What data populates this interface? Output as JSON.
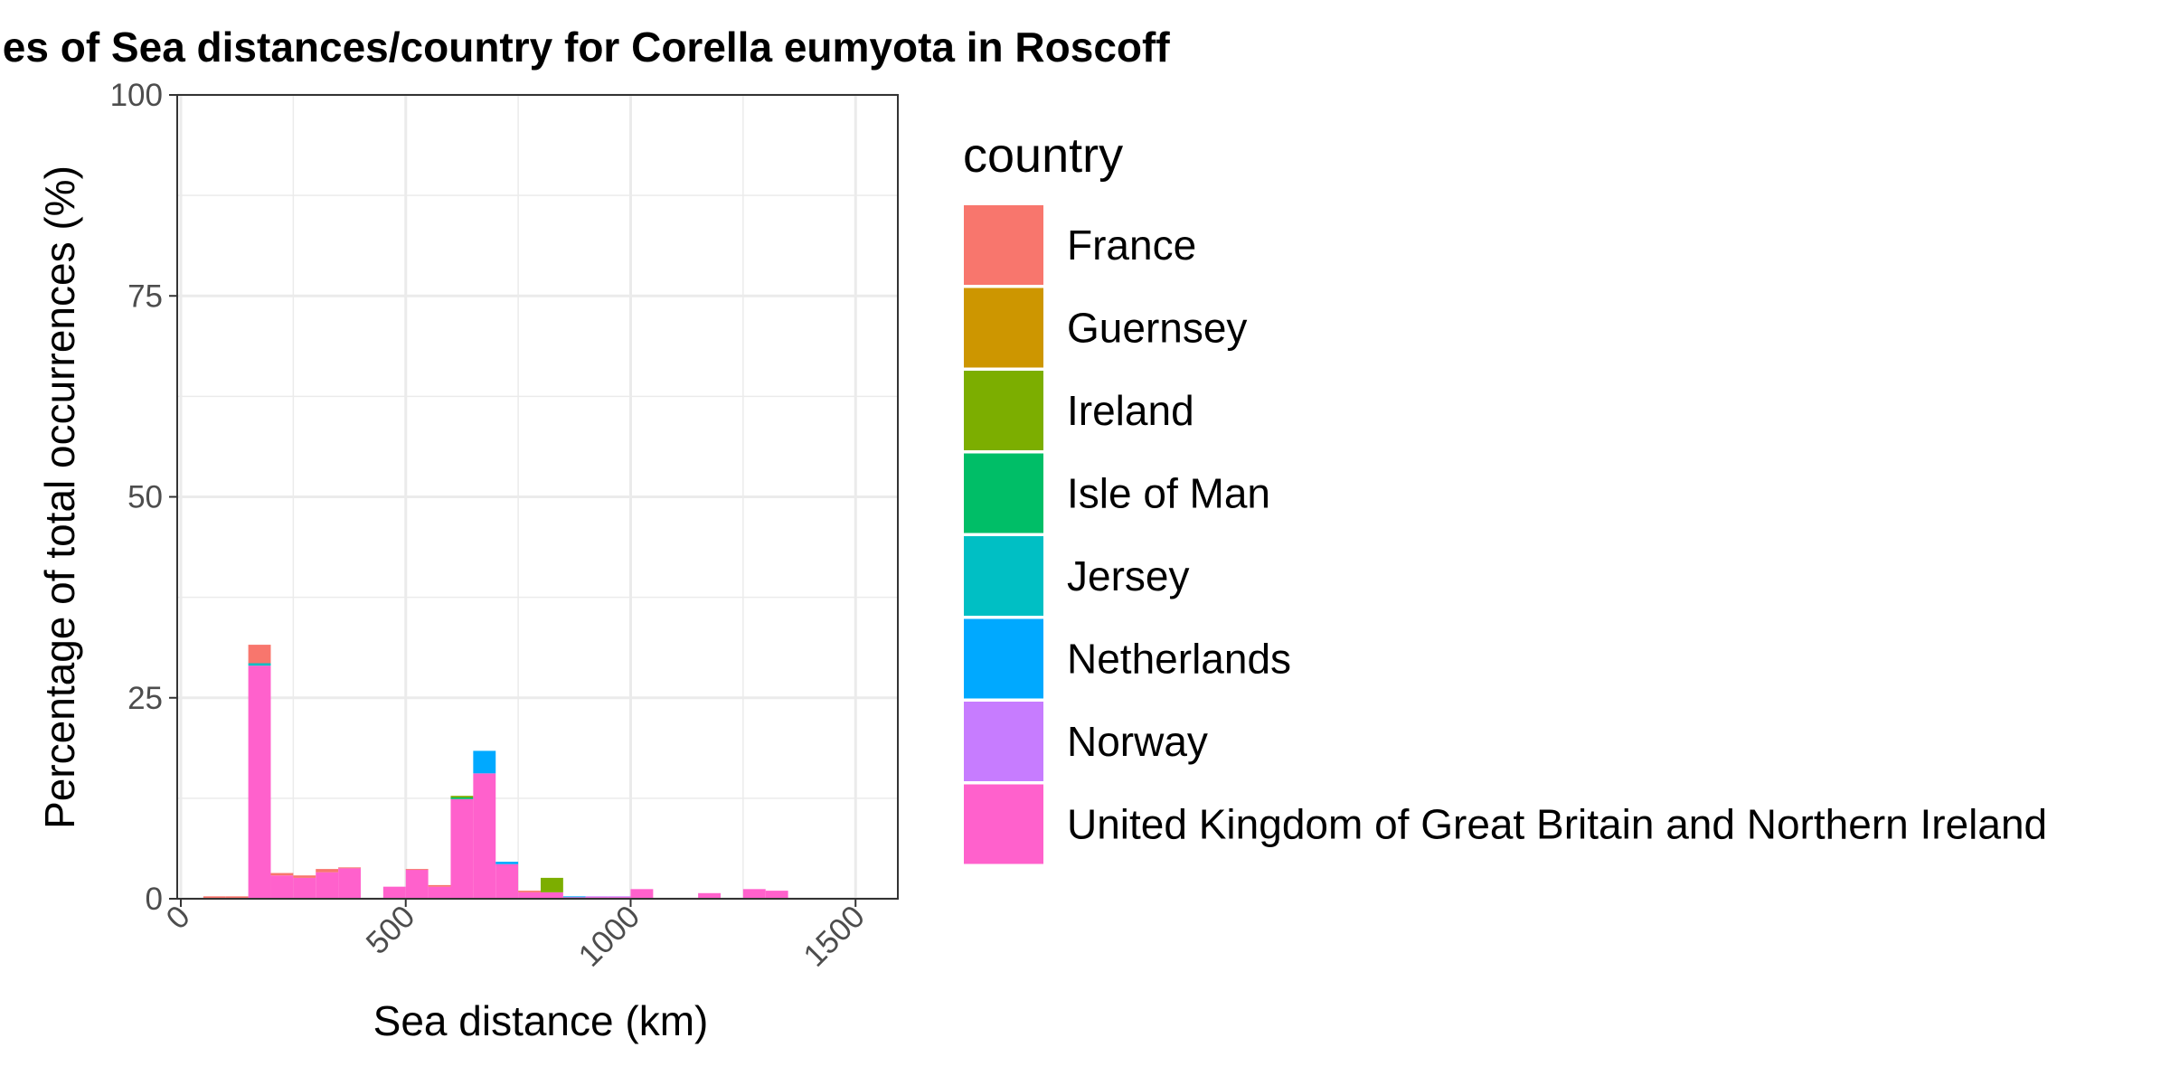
{
  "chart_data": {
    "type": "bar",
    "stacked": true,
    "title": "ies of Sea distances/country for Corella eumyota in Roscoff",
    "xlabel": "Sea distance (km)",
    "ylabel": "Percentage of total occurrences (%)",
    "xlim": [
      0,
      1600
    ],
    "ylim": [
      0,
      100
    ],
    "x_ticks": [
      "0",
      "500",
      "1000",
      "1500"
    ],
    "y_ticks": [
      "0",
      "25",
      "50",
      "75",
      "100"
    ],
    "grid": true,
    "bin_width": 50,
    "legend": {
      "title": "country",
      "position": "right",
      "entries": [
        {
          "name": "France",
          "color": "#F8766D"
        },
        {
          "name": "Guernsey",
          "color": "#CD9600"
        },
        {
          "name": "Ireland",
          "color": "#7CAE00"
        },
        {
          "name": "Isle of Man",
          "color": "#00BE67"
        },
        {
          "name": "Jersey",
          "color": "#00BFC4"
        },
        {
          "name": "Netherlands",
          "color": "#00A9FF"
        },
        {
          "name": "Norway",
          "color": "#C77CFF"
        },
        {
          "name": "United Kingdom of Great Britain and Northern Ireland",
          "color": "#FF61CC"
        }
      ]
    },
    "bins": [
      {
        "x0": 50,
        "x1": 100,
        "values": {
          "France": 0.2,
          "United Kingdom of Great Britain and Northern Ireland": 0.1
        }
      },
      {
        "x0": 100,
        "x1": 150,
        "values": {
          "France": 0.2,
          "United Kingdom of Great Britain and Northern Ireland": 0.1
        }
      },
      {
        "x0": 150,
        "x1": 200,
        "values": {
          "United Kingdom of Great Britain and Northern Ireland": 29.0,
          "Jersey": 0.3,
          "France": 2.3
        }
      },
      {
        "x0": 200,
        "x1": 250,
        "values": {
          "United Kingdom of Great Britain and Northern Ireland": 2.9,
          "France": 0.3
        }
      },
      {
        "x0": 250,
        "x1": 300,
        "values": {
          "United Kingdom of Great Britain and Northern Ireland": 2.6,
          "France": 0.3
        }
      },
      {
        "x0": 300,
        "x1": 350,
        "values": {
          "United Kingdom of Great Britain and Northern Ireland": 3.3,
          "France": 0.4
        }
      },
      {
        "x0": 350,
        "x1": 400,
        "values": {
          "United Kingdom of Great Britain and Northern Ireland": 3.8,
          "France": 0.1
        }
      },
      {
        "x0": 450,
        "x1": 500,
        "values": {
          "United Kingdom of Great Britain and Northern Ireland": 1.5
        }
      },
      {
        "x0": 500,
        "x1": 550,
        "values": {
          "United Kingdom of Great Britain and Northern Ireland": 3.6,
          "France": 0.1
        }
      },
      {
        "x0": 550,
        "x1": 600,
        "values": {
          "United Kingdom of Great Britain and Northern Ireland": 1.5,
          "France": 0.2
        }
      },
      {
        "x0": 600,
        "x1": 650,
        "values": {
          "United Kingdom of Great Britain and Northern Ireland": 12.4,
          "Isle of Man": 0.2,
          "Ireland": 0.2
        }
      },
      {
        "x0": 650,
        "x1": 700,
        "values": {
          "United Kingdom of Great Britain and Northern Ireland": 15.6,
          "Netherlands": 2.8
        }
      },
      {
        "x0": 700,
        "x1": 750,
        "values": {
          "United Kingdom of Great Britain and Northern Ireland": 4.3,
          "Netherlands": 0.3
        }
      },
      {
        "x0": 750,
        "x1": 800,
        "values": {
          "United Kingdom of Great Britain and Northern Ireland": 0.8,
          "France": 0.2
        }
      },
      {
        "x0": 800,
        "x1": 850,
        "values": {
          "United Kingdom of Great Britain and Northern Ireland": 0.8,
          "Ireland": 1.8
        }
      },
      {
        "x0": 850,
        "x1": 900,
        "values": {
          "United Kingdom of Great Britain and Northern Ireland": 0.2,
          "Netherlands": 0.1
        }
      },
      {
        "x0": 900,
        "x1": 950,
        "values": {
          "United Kingdom of Great Britain and Northern Ireland": 0.2,
          "Norway": 0.1
        }
      },
      {
        "x0": 950,
        "x1": 1000,
        "values": {
          "United Kingdom of Great Britain and Northern Ireland": 0.2,
          "Norway": 0.1
        }
      },
      {
        "x0": 1000,
        "x1": 1050,
        "values": {
          "United Kingdom of Great Britain and Northern Ireland": 1.2
        }
      },
      {
        "x0": 1050,
        "x1": 1100,
        "values": {
          "United Kingdom of Great Britain and Northern Ireland": 0.1
        }
      },
      {
        "x0": 1100,
        "x1": 1150,
        "values": {
          "United Kingdom of Great Britain and Northern Ireland": 0.1
        }
      },
      {
        "x0": 1150,
        "x1": 1200,
        "values": {
          "United Kingdom of Great Britain and Northern Ireland": 0.7
        }
      },
      {
        "x0": 1200,
        "x1": 1250,
        "values": {
          "United Kingdom of Great Britain and Northern Ireland": 0.1
        }
      },
      {
        "x0": 1250,
        "x1": 1300,
        "values": {
          "United Kingdom of Great Britain and Northern Ireland": 1.2
        }
      },
      {
        "x0": 1300,
        "x1": 1350,
        "values": {
          "United Kingdom of Great Britain and Northern Ireland": 1.0
        }
      },
      {
        "x0": 1350,
        "x1": 1400,
        "values": {
          "United Kingdom of Great Britain and Northern Ireland": 0.1
        }
      },
      {
        "x0": 1400,
        "x1": 1450,
        "values": {
          "United Kingdom of Great Britain and Northern Ireland": 0.1
        }
      },
      {
        "x0": 1450,
        "x1": 1500,
        "values": {
          "United Kingdom of Great Britain and Northern Ireland": 0.1
        }
      },
      {
        "x0": 1500,
        "x1": 1550,
        "values": {
          "United Kingdom of Great Britain and Northern Ireland": 0.1
        }
      }
    ]
  }
}
